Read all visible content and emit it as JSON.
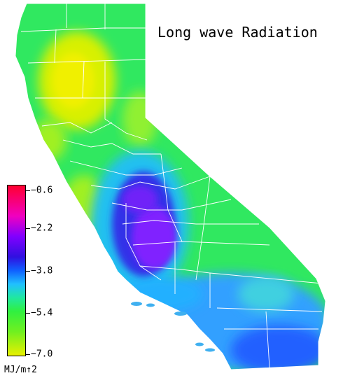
{
  "title": "Long wave Radiation",
  "legend": {
    "ticks": [
      "−0.6",
      "−2.2",
      "−3.8",
      "−5.4",
      "−7.0"
    ],
    "tick_values": [
      -0.6,
      -2.2,
      -3.8,
      -5.4,
      -7.0
    ],
    "range": [
      -7.0,
      -0.6
    ],
    "units": "MJ/m↑2",
    "colors_high_to_low": [
      "#ff0030",
      "#f000c0",
      "#8000ff",
      "#3010e0",
      "#1060ff",
      "#20c0ff",
      "#20e8a0",
      "#30f040",
      "#70f020",
      "#e8f000"
    ]
  },
  "map": {
    "region": "California",
    "boundaries": "county-lines",
    "pattern": "least negative (purple) in the San Joaquin Valley; most negative (yellow) in the northern Sacramento Valley"
  }
}
